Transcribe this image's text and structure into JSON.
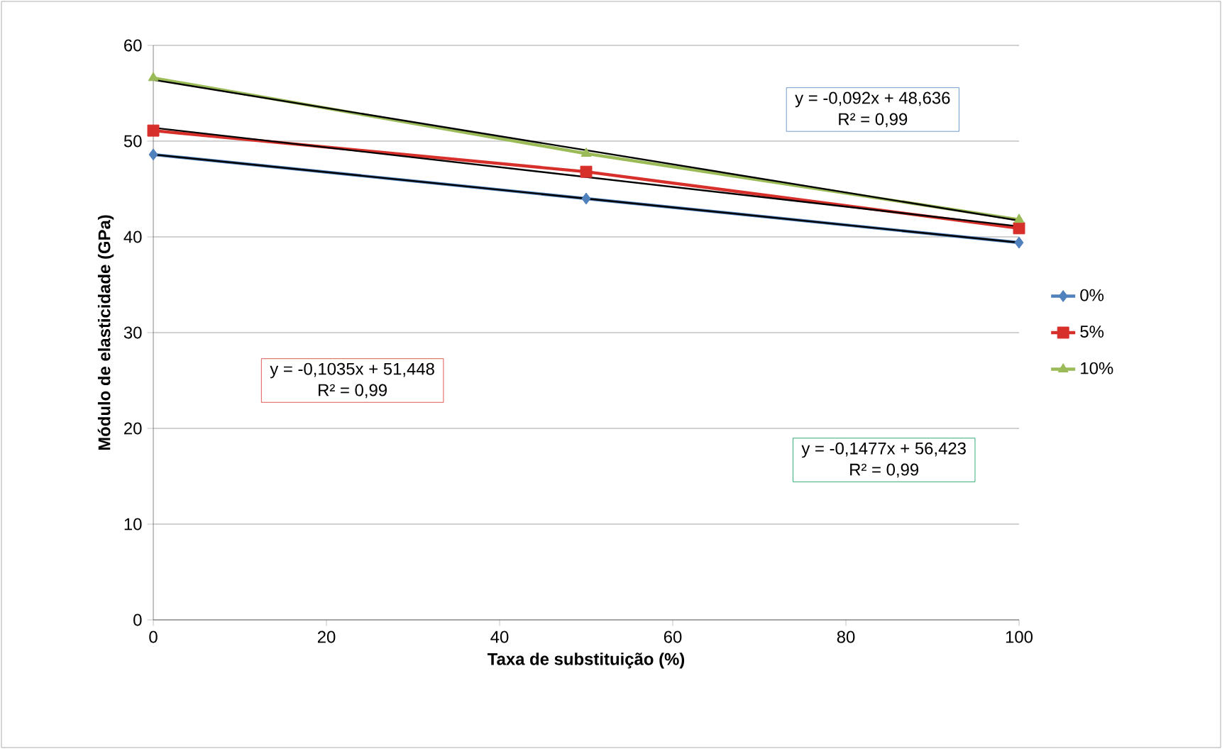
{
  "chart_data": {
    "type": "line",
    "xlabel": "Taxa de substituição (%)",
    "ylabel": "Módulo de elasticidade (GPa)",
    "xlim": [
      0,
      100
    ],
    "ylim": [
      0,
      60
    ],
    "xticks": [
      0,
      20,
      40,
      60,
      80,
      100
    ],
    "yticks": [
      0,
      10,
      20,
      30,
      40,
      50,
      60
    ],
    "grid": "y",
    "legend": "right",
    "series": [
      {
        "name": "0%",
        "color": "#4f81bd",
        "marker": "diamond",
        "x": [
          0,
          50,
          100
        ],
        "values": [
          48.6,
          44.0,
          39.4
        ]
      },
      {
        "name": "5%",
        "color": "#d7302b",
        "marker": "square",
        "x": [
          0,
          50,
          100
        ],
        "values": [
          51.1,
          46.8,
          40.9
        ]
      },
      {
        "name": "10%",
        "color": "#9bbb59",
        "marker": "triangle",
        "x": [
          0,
          50,
          100
        ],
        "values": [
          56.6,
          48.7,
          41.8
        ]
      },
      {
        "type": "line",
        "color": "#000000",
        "marker": "none",
        "x": [
          0,
          100
        ],
        "values": [
          48.6,
          39.4
        ]
      },
      {
        "type": "line",
        "color": "#000000",
        "marker": "none",
        "x": [
          0,
          100
        ],
        "values": [
          51.4,
          41.1
        ]
      },
      {
        "type": "line",
        "color": "#000000",
        "marker": "none",
        "x": [
          0,
          100
        ],
        "values": [
          56.4,
          41.7
        ]
      }
    ],
    "annotations": [
      "y = -0,092x + 48,636",
      "R² = 0,99",
      "y = -0,1035x + 51,448",
      "R² = 0,99",
      "y = -0,1477x + 56,423",
      "R² = 0,99"
    ]
  }
}
